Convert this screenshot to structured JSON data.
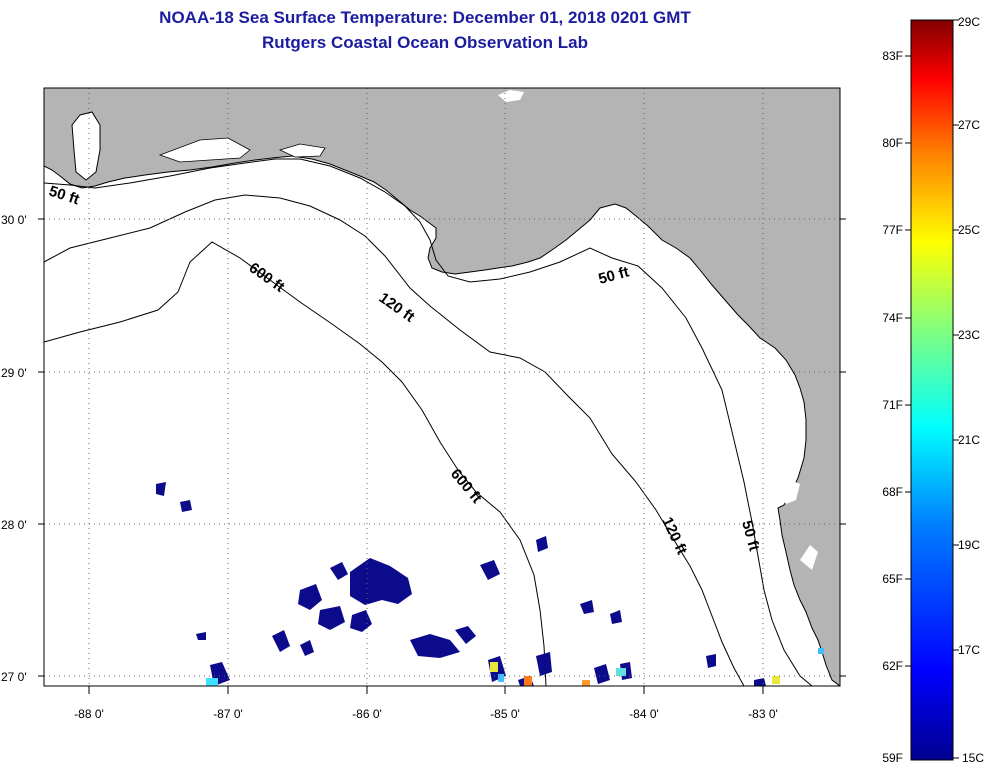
{
  "title": {
    "line1": "NOAA-18 Sea Surface Temperature:  December 01, 2018 0201 GMT",
    "line2": "Rutgers Coastal Ocean Observation Lab"
  },
  "map": {
    "lat_labels": [
      "30 0'",
      "29 0'",
      "28 0'",
      "27 0'"
    ],
    "lon_labels": [
      "-88 0'",
      "-87 0'",
      "-86 0'",
      "-85 0'",
      "-84 0'",
      "-83 0'"
    ],
    "isobath_labels": [
      "50 ft",
      "600 ft",
      "120 ft",
      "50 ft",
      "600 ft",
      "120 ft",
      "50 ft"
    ],
    "colors": {
      "land": "#b4b4b4",
      "water": "#ffffff",
      "sst_cold": "#0b0b8c",
      "grid": "#555555"
    }
  },
  "colorbar": {
    "f_labels": [
      "83F",
      "80F",
      "77F",
      "74F",
      "71F",
      "68F",
      "65F",
      "62F",
      "59F"
    ],
    "c_labels": [
      "29C",
      "27C",
      "25C",
      "23C",
      "21C",
      "19C",
      "17C",
      "15C"
    ],
    "colors": [
      "#00008f",
      "#0000ff",
      "#0080ff",
      "#00ffff",
      "#80ff80",
      "#ffff00",
      "#ff8000",
      "#ff0000",
      "#800000"
    ]
  }
}
